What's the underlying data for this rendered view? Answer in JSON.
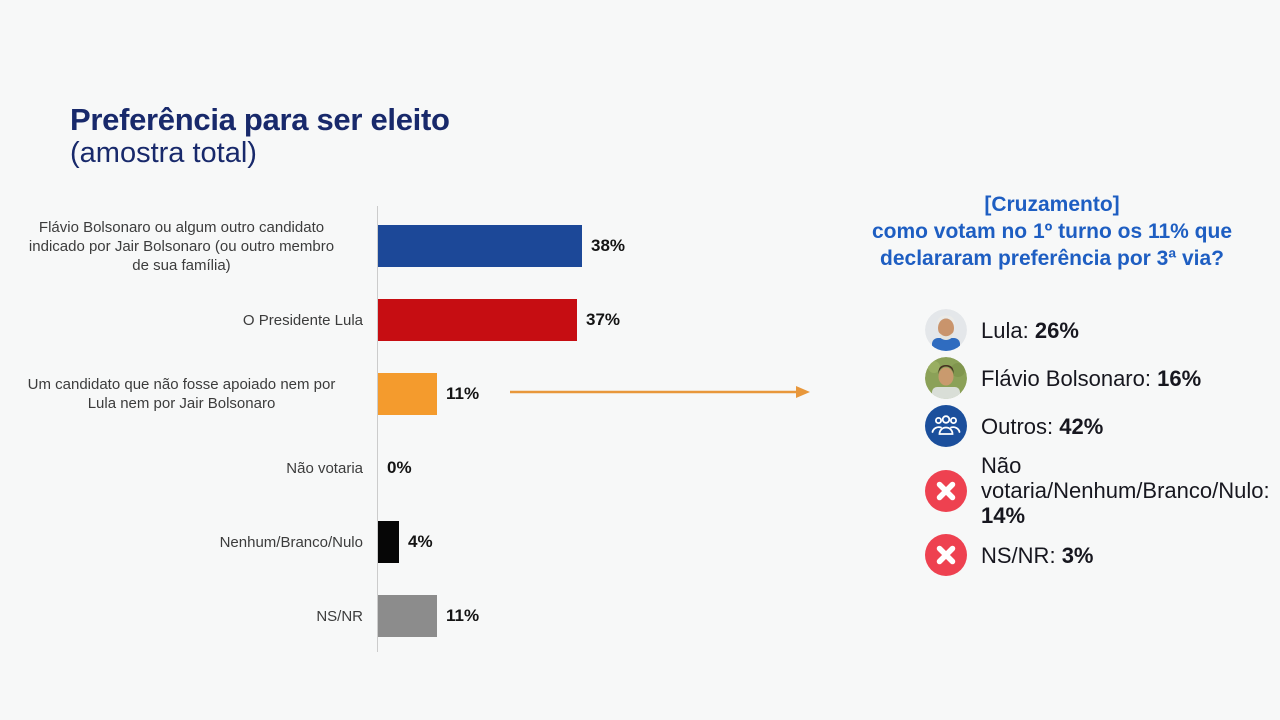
{
  "title": {
    "line1": "Preferência para ser eleito",
    "line2": "(amostra total)"
  },
  "colors": {
    "title_navy": "#18296b",
    "heading_blue": "#1e5ec2",
    "arrow_orange": "#e8973b",
    "axis_gray": "#cccccc",
    "group_icon_blue": "#1b4f9c",
    "x_icon_red": "#ee4150"
  },
  "chart_data": {
    "type": "bar",
    "orientation": "horizontal",
    "title": "Preferência para ser eleito (amostra total)",
    "unit": "%",
    "xlim": [
      0,
      40
    ],
    "grid": false,
    "categories": [
      "Flávio Bolsonaro ou algum outro candidato\nindicado por Jair Bolsonaro (ou outro membro\nde sua família)",
      "O Presidente Lula",
      "Um candidato que não fosse apoiado nem por\nLula nem por Jair Bolsonaro",
      "Não votaria",
      "Nenhum/Branco/Nulo",
      "NS/NR"
    ],
    "values": [
      38,
      37,
      11,
      0,
      4,
      11
    ],
    "value_labels": [
      "38%",
      "37%",
      "11%",
      "0%",
      "4%",
      "11%"
    ],
    "bar_colors": [
      "#1c4898",
      "#c60d12",
      "#f49b2d",
      null,
      "#060606",
      "#8c8c8c"
    ],
    "annotation_arrow": {
      "from_category_index": 2,
      "points_to": "cross-panel",
      "color": "#e8973b"
    }
  },
  "cross": {
    "heading": "[Cruzamento]\ncomo votam no 1º turno os 11% que\ndeclararam preferência por 3ª via?",
    "items": [
      {
        "icon": "lula-avatar",
        "name": "Lula:",
        "value": "26%"
      },
      {
        "icon": "flavio-avatar",
        "name": "Flávio Bolsonaro:",
        "value": "16%"
      },
      {
        "icon": "group",
        "name": "Outros:",
        "value": "42%"
      },
      {
        "icon": "x-mark",
        "name": "Não votaria/Nenhum/Branco/Nulo:",
        "value": "14%"
      },
      {
        "icon": "x-mark",
        "name": "NS/NR:",
        "value": "3%"
      }
    ]
  }
}
